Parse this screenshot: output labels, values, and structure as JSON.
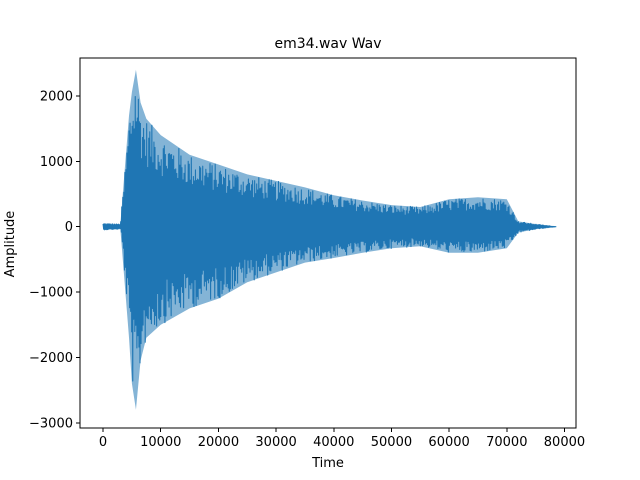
{
  "chart_data": {
    "type": "line",
    "title": "em34.wav Wav",
    "xlabel": "Time",
    "ylabel": "Amplitude",
    "xlim": [
      -4000,
      82000
    ],
    "ylim": [
      -3080,
      2580
    ],
    "xticks": [
      0,
      10000,
      20000,
      30000,
      40000,
      50000,
      60000,
      70000,
      80000
    ],
    "yticks": [
      -3000,
      -2000,
      -1000,
      0,
      1000,
      2000
    ],
    "grid": false,
    "legend": "none",
    "series": [
      {
        "color": "#1f77b4",
        "x": [
          0,
          3000,
          4500,
          5000,
          5700,
          6500,
          7500,
          10000,
          15000,
          20000,
          25000,
          30000,
          35000,
          40000,
          45000,
          50000,
          55000,
          60000,
          65000,
          70000,
          72000,
          75000,
          78500
        ],
        "upper": [
          50,
          40,
          1700,
          2060,
          2400,
          1900,
          1650,
          1400,
          1100,
          950,
          800,
          700,
          600,
          480,
          400,
          330,
          300,
          420,
          450,
          420,
          80,
          40,
          0
        ],
        "lower": [
          -50,
          -40,
          -1700,
          -2400,
          -2800,
          -2050,
          -1700,
          -1500,
          -1250,
          -1100,
          -850,
          -700,
          -550,
          -480,
          -400,
          -330,
          -300,
          -400,
          -400,
          -330,
          -90,
          -40,
          0
        ]
      }
    ]
  }
}
